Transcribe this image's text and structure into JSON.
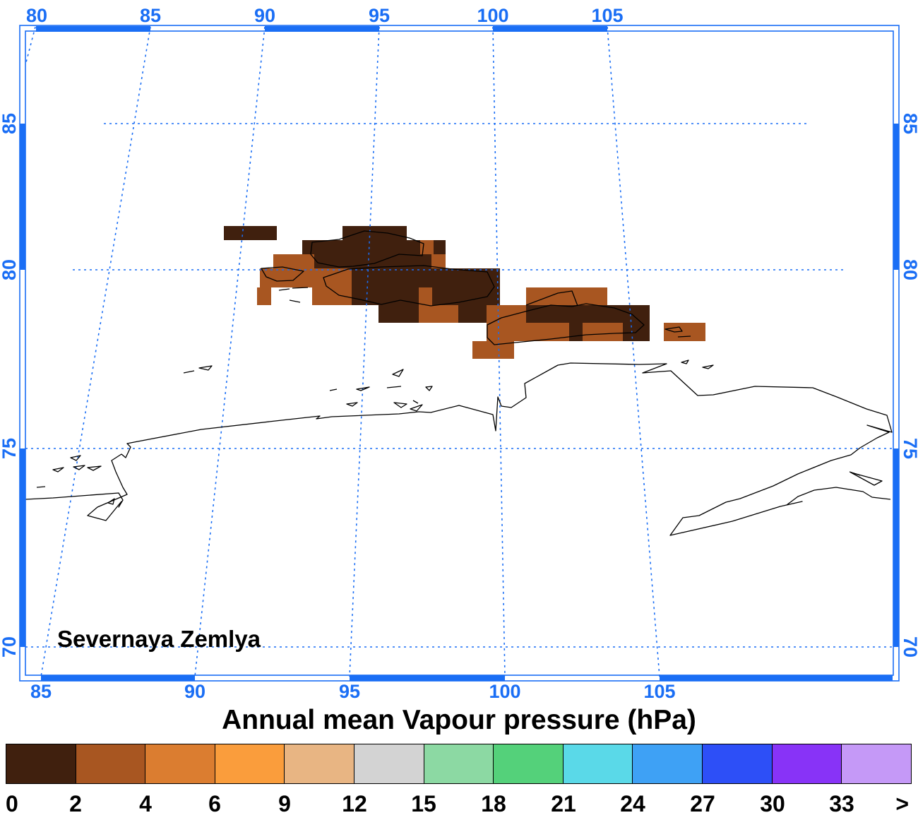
{
  "map": {
    "place_label": "Severnaya Zemlya",
    "top_lon_labels": [
      "80",
      "85",
      "90",
      "95",
      "100",
      "105"
    ],
    "bottom_lon_labels": [
      "85",
      "90",
      "95",
      "100",
      "105"
    ],
    "left_lat_labels": [
      "85",
      "80",
      "75",
      "70"
    ],
    "right_lat_labels": [
      "85",
      "80",
      "75",
      "70"
    ],
    "frame_color": "#1a6ef5",
    "grid_color": "#1a6ef5",
    "coast_color": "#000000"
  },
  "legend": {
    "title": "Annual mean Vapour pressure (hPa)",
    "colors": [
      "#40200e",
      "#a85621",
      "#db7d30",
      "#fa9d3c",
      "#e8b583",
      "#d3d3d3",
      "#8cd9a3",
      "#54d17a",
      "#5ad9e8",
      "#3ea1f5",
      "#2d4ff7",
      "#8833f7",
      "#c599f7"
    ],
    "labels": [
      "0",
      "2",
      "4",
      "6",
      "9",
      "12",
      "15",
      "18",
      "21",
      "24",
      "27",
      "30",
      "33",
      ">"
    ]
  }
}
